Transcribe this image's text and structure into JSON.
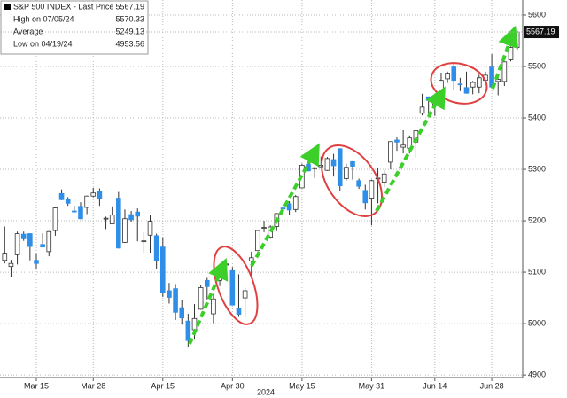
{
  "chart_data": {
    "type": "candlestick",
    "legend_box": [
      {
        "label": "S&P 500 INDEX - Last Price",
        "value": 5567.19
      },
      {
        "label": "High on 07/05/24",
        "value": 5570.33
      },
      {
        "label": "Average",
        "value": 5249.13
      },
      {
        "label": "Low on 04/19/24",
        "value": 4953.56
      }
    ],
    "categories": [
      null,
      null,
      null,
      null,
      null,
      "Mar 15",
      null,
      null,
      null,
      null,
      null,
      null,
      null,
      null,
      "Mar 28",
      null,
      null,
      null,
      null,
      null,
      null,
      null,
      null,
      null,
      null,
      "Apr 15",
      null,
      null,
      null,
      null,
      null,
      null,
      null,
      null,
      null,
      null,
      "Apr 30",
      null,
      null,
      null,
      null,
      null,
      null,
      null,
      null,
      null,
      null,
      "May 15",
      null,
      null,
      null,
      null,
      null,
      null,
      null,
      null,
      null,
      null,
      "May 31",
      null,
      null,
      null,
      null,
      null,
      null,
      null,
      null,
      null,
      "Jun 14",
      null,
      null,
      null,
      null,
      null,
      null,
      null,
      null,
      "Jun 28",
      null,
      null,
      null,
      null
    ],
    "x_axis_label": "2024",
    "open": [
      5123,
      5111,
      5134,
      5174,
      5175,
      5123,
      5154,
      5140,
      5181,
      5253,
      5242,
      5219,
      5228,
      5226,
      5248,
      5257,
      5204,
      5194,
      5244,
      5158,
      5212,
      5217,
      5160,
      5172,
      5171,
      5149,
      5064,
      5068,
      5031,
      5005,
      4988,
      5028,
      5084,
      5019,
      5084,
      5114,
      5103,
      5029,
      5050,
      5122,
      5142,
      5187,
      5168,
      5189,
      5225,
      5233,
      5222,
      5264,
      5310,
      5303,
      5305,
      5298,
      5319,
      5340,
      5282,
      5315,
      5278,
      5259,
      5244,
      5283,
      5275,
      5314,
      5357,
      5343,
      5341,
      5353,
      5409,
      5441,
      5424,
      5432,
      5476,
      5499,
      5466,
      5459,
      5460,
      5460,
      5473,
      5499,
      5471,
      5471,
      5513,
      5537
    ],
    "high": [
      5189,
      5124,
      5179,
      5179,
      5176,
      5137,
      5176,
      5180,
      5226,
      5261,
      5246,
      5229,
      5236,
      5249,
      5264,
      5263,
      5208,
      5228,
      5256,
      5222,
      5219,
      5224,
      5178,
      5211,
      5175,
      5168,
      5079,
      5077,
      5046,
      5019,
      5038,
      5076,
      5089,
      5058,
      5114,
      5124,
      5110,
      5096,
      5070,
      5140,
      5181,
      5200,
      5191,
      5215,
      5239,
      5238,
      5250,
      5311,
      5325,
      5305,
      5325,
      5324,
      5330,
      5341,
      5311,
      5316,
      5282,
      5270,
      5280,
      5302,
      5298,
      5354,
      5362,
      5376,
      5366,
      5376,
      5447,
      5441,
      5432,
      5488,
      5490,
      5505,
      5478,
      5490,
      5472,
      5484,
      5490,
      5524,
      5480,
      5510,
      5539,
      5570.33
    ],
    "low": [
      5117,
      5091,
      5115,
      5161,
      5123,
      5105,
      5148,
      5131,
      5171,
      5240,
      5229,
      5216,
      5203,
      5213,
      5246,
      5229,
      5184,
      5194,
      5146,
      5157,
      5197,
      5160,
      5138,
      5138,
      5107,
      5052,
      5039,
      5007,
      4998,
      4953.56,
      4969,
      5027,
      5047,
      5001,
      5073,
      5088,
      5036,
      5013,
      5012,
      5092,
      5142,
      5178,
      5165,
      5180,
      5209,
      5211,
      5217,
      5263,
      5296,
      5283,
      5302,
      5297,
      5286,
      5257,
      5278,
      5280,
      5262,
      5222,
      5191,
      5234,
      5265,
      5300,
      5336,
      5331,
      5331,
      5324,
      5405,
      5403,
      5404,
      5421,
      5468,
      5455,
      5452,
      5447,
      5446,
      5448,
      5468,
      5460,
      5444,
      5462,
      5510,
      5531
    ],
    "close": [
      5137,
      5117,
      5175,
      5165,
      5150,
      5117,
      5149,
      5179,
      5225,
      5241,
      5234,
      5218,
      5204,
      5248,
      5254,
      5243,
      5205,
      5211,
      5147,
      5204,
      5202,
      5209,
      5161,
      5199,
      5123,
      5061,
      5051,
      5022,
      5011,
      4967,
      5010,
      5070,
      5072,
      5048,
      5100,
      5116,
      5036,
      5018,
      5064,
      5128,
      5181,
      5187,
      5188,
      5214,
      5223,
      5221,
      5247,
      5308,
      5297,
      5303,
      5308,
      5321,
      5307,
      5268,
      5304,
      5306,
      5267,
      5235,
      5278,
      5283,
      5291,
      5354,
      5353,
      5347,
      5361,
      5375,
      5421,
      5434,
      5432,
      5473,
      5487,
      5473,
      5465,
      5448,
      5469,
      5478,
      5483,
      5460,
      5475,
      5509,
      5537,
      5567.19
    ],
    "up_color": "#ffffff",
    "down_color": "#2f8fe8",
    "ylim": [
      4895,
      5620
    ],
    "yticks": [
      4900,
      5000,
      5100,
      5200,
      5300,
      5400,
      5500,
      5600
    ],
    "grid": true
  }
}
